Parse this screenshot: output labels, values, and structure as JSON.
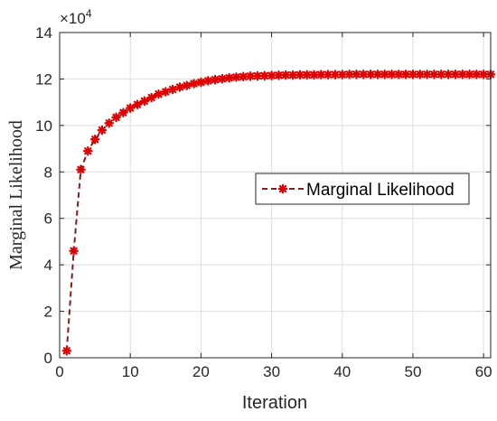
{
  "chart_data": {
    "type": "line",
    "title": "",
    "xlabel": "Iteration",
    "ylabel": "Marginal Likelihood",
    "y_exponent_label": "×10",
    "y_exponent_power": "4",
    "xlim": [
      0,
      61
    ],
    "ylim": [
      0,
      14
    ],
    "x_ticks": [
      0,
      10,
      20,
      30,
      40,
      50,
      60
    ],
    "y_ticks": [
      0,
      2,
      4,
      6,
      8,
      10,
      12,
      14
    ],
    "grid": true,
    "legend_position": "middle-right",
    "series": [
      {
        "name": "Marginal Likelihood",
        "line_style": "dashed",
        "marker": "asterisk",
        "line_color": "#8b1a1a",
        "marker_color": "#e00000",
        "x": [
          1,
          2,
          3,
          4,
          5,
          6,
          7,
          8,
          9,
          10,
          11,
          12,
          13,
          14,
          15,
          16,
          17,
          18,
          19,
          20,
          21,
          22,
          23,
          24,
          25,
          26,
          27,
          28,
          29,
          30,
          31,
          32,
          33,
          34,
          35,
          36,
          37,
          38,
          39,
          40,
          41,
          42,
          43,
          44,
          45,
          46,
          47,
          48,
          49,
          50,
          51,
          52,
          53,
          54,
          55,
          56,
          57,
          58,
          59,
          60,
          61
        ],
        "y": [
          0.3,
          4.6,
          8.1,
          8.9,
          9.4,
          9.8,
          10.1,
          10.35,
          10.55,
          10.75,
          10.9,
          11.05,
          11.2,
          11.35,
          11.45,
          11.55,
          11.65,
          11.72,
          11.8,
          11.86,
          11.92,
          11.97,
          12.01,
          12.05,
          12.08,
          12.1,
          12.12,
          12.13,
          12.14,
          12.15,
          12.16,
          12.17,
          12.17,
          12.18,
          12.18,
          12.18,
          12.19,
          12.19,
          12.19,
          12.19,
          12.2,
          12.2,
          12.2,
          12.2,
          12.2,
          12.2,
          12.2,
          12.2,
          12.2,
          12.2,
          12.2,
          12.2,
          12.2,
          12.2,
          12.2,
          12.2,
          12.2,
          12.2,
          12.2,
          12.2,
          12.2
        ]
      }
    ]
  }
}
